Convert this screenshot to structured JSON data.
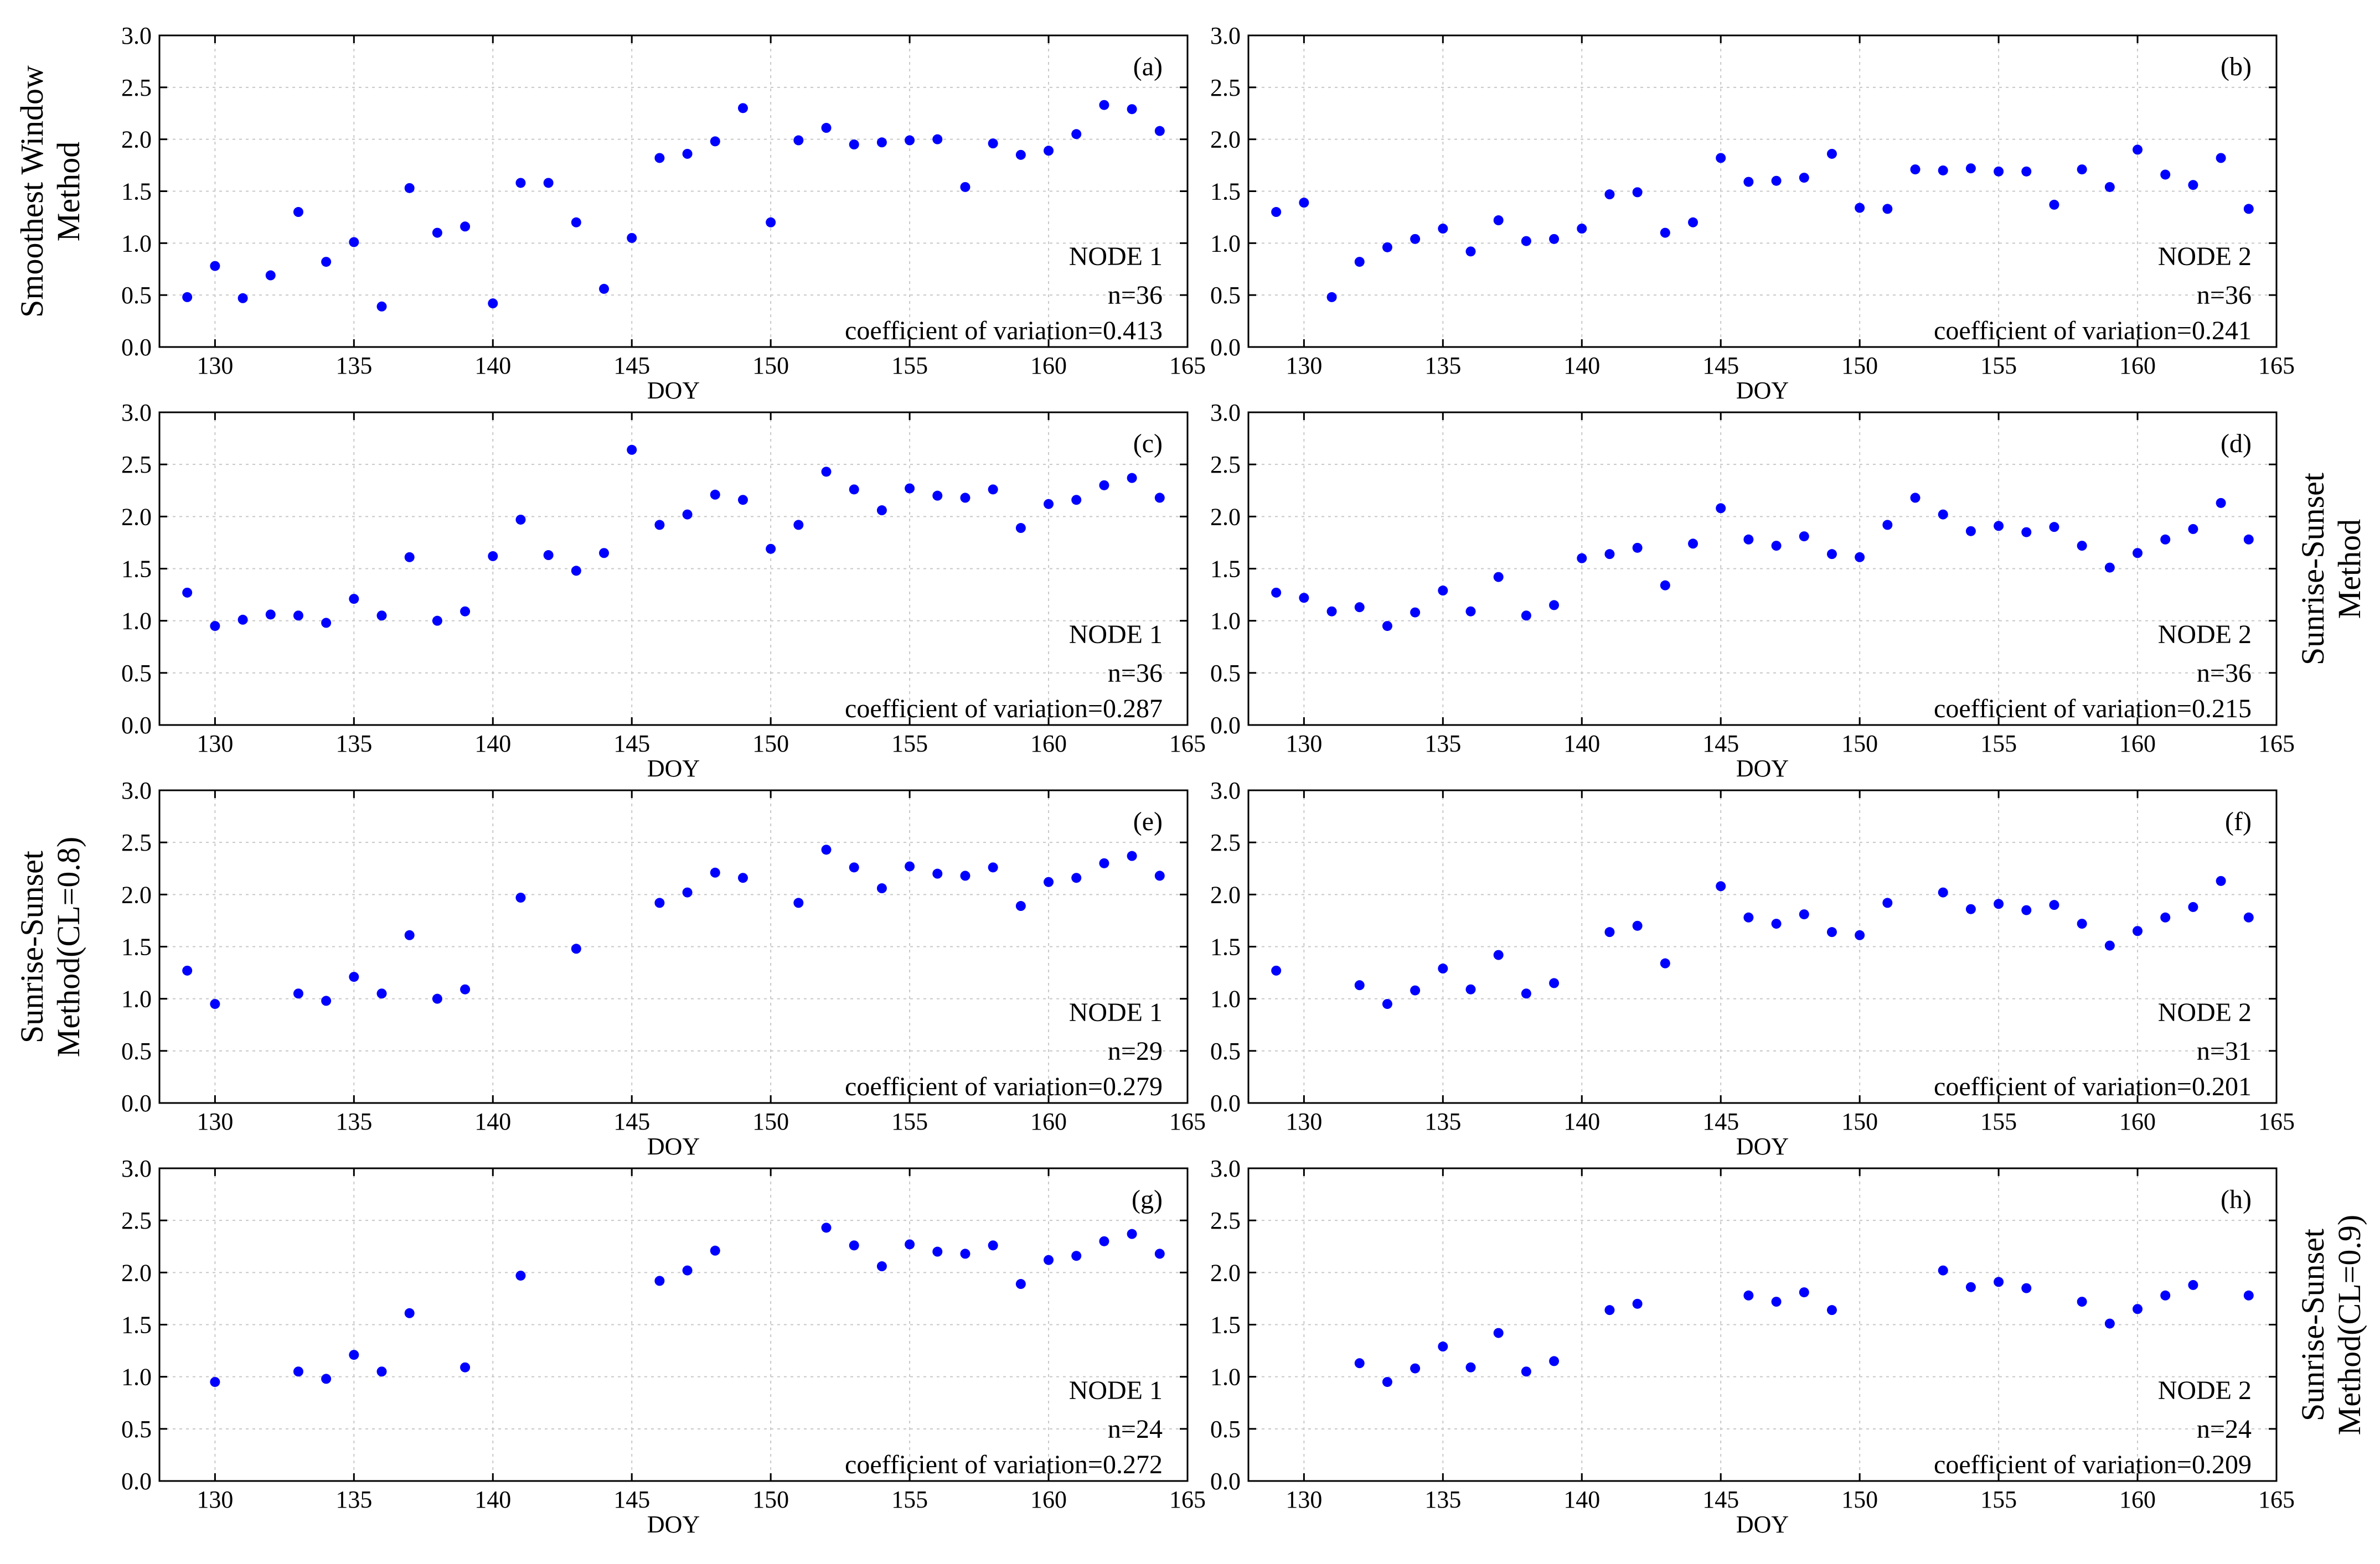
{
  "chart_data": [
    {
      "type": "scatter",
      "panel_label": "(a)",
      "node": "NODE 1",
      "n_text": "n=36",
      "cv_text": "coefficient of variation=0.413",
      "xlabel": "DOY",
      "xlim": [
        128,
        165
      ],
      "ylim": [
        0,
        3
      ],
      "xticks": [
        130,
        135,
        140,
        145,
        150,
        155,
        160,
        165
      ],
      "yticks": [
        0,
        0.5,
        1,
        1.5,
        2,
        2.5,
        3
      ],
      "xtick_labels": [
        "130",
        "135",
        "140",
        "145",
        "150",
        "155",
        "160",
        "165"
      ],
      "ytick_labels": [
        "0.0",
        "0.5",
        "1.0",
        "1.5",
        "2.0",
        "2.5",
        "3.0"
      ],
      "x": [
        129,
        130,
        131,
        132,
        133,
        134,
        135,
        136,
        137,
        138,
        139,
        140,
        141,
        142,
        143,
        144,
        145,
        146,
        147,
        148,
        149,
        150,
        151,
        152,
        153,
        154,
        155,
        156,
        157,
        158,
        159,
        160,
        161,
        162,
        163,
        164
      ],
      "y": [
        0.48,
        0.78,
        0.47,
        0.69,
        1.3,
        0.82,
        1.01,
        0.39,
        1.53,
        1.1,
        1.16,
        0.42,
        1.58,
        1.58,
        1.2,
        0.56,
        1.05,
        1.82,
        1.86,
        1.98,
        2.3,
        1.2,
        1.99,
        2.11,
        1.95,
        1.97,
        1.99,
        2.0,
        1.54,
        1.96,
        1.85,
        1.89,
        2.05,
        2.33,
        2.29,
        2.08
      ]
    },
    {
      "type": "scatter",
      "panel_label": "(b)",
      "node": "NODE 2",
      "n_text": "n=36",
      "cv_text": "coefficient of variation=0.241",
      "xlabel": "DOY",
      "xlim": [
        128,
        165
      ],
      "ylim": [
        0,
        3
      ],
      "xticks": [
        130,
        135,
        140,
        145,
        150,
        155,
        160,
        165
      ],
      "yticks": [
        0,
        0.5,
        1,
        1.5,
        2,
        2.5,
        3
      ],
      "xtick_labels": [
        "130",
        "135",
        "140",
        "145",
        "150",
        "155",
        "160",
        "165"
      ],
      "ytick_labels": [
        "0.0",
        "0.5",
        "1.0",
        "1.5",
        "2.0",
        "2.5",
        "3.0"
      ],
      "x": [
        129,
        130,
        131,
        132,
        133,
        134,
        135,
        136,
        137,
        138,
        139,
        140,
        141,
        142,
        143,
        144,
        145,
        146,
        147,
        148,
        149,
        150,
        151,
        152,
        153,
        154,
        155,
        156,
        157,
        158,
        159,
        160,
        161,
        162,
        163,
        164
      ],
      "y": [
        1.3,
        1.39,
        0.48,
        0.82,
        0.96,
        1.04,
        1.14,
        0.92,
        1.22,
        1.02,
        1.04,
        1.14,
        1.47,
        1.49,
        1.1,
        1.2,
        1.82,
        1.59,
        1.6,
        1.63,
        1.86,
        1.34,
        1.33,
        1.71,
        1.7,
        1.72,
        1.69,
        1.69,
        1.37,
        1.71,
        1.54,
        1.9,
        1.66,
        1.56,
        1.82,
        1.33
      ]
    },
    {
      "type": "scatter",
      "panel_label": "(c)",
      "node": "NODE 1",
      "n_text": "n=36",
      "cv_text": "coefficient of variation=0.287",
      "xlabel": "DOY",
      "xlim": [
        128,
        165
      ],
      "ylim": [
        0,
        3
      ],
      "xticks": [
        130,
        135,
        140,
        145,
        150,
        155,
        160,
        165
      ],
      "yticks": [
        0,
        0.5,
        1,
        1.5,
        2,
        2.5,
        3
      ],
      "xtick_labels": [
        "130",
        "135",
        "140",
        "145",
        "150",
        "155",
        "160",
        "165"
      ],
      "ytick_labels": [
        "0.0",
        "0.5",
        "1.0",
        "1.5",
        "2.0",
        "2.5",
        "3.0"
      ],
      "x": [
        129,
        130,
        131,
        132,
        133,
        134,
        135,
        136,
        137,
        138,
        139,
        140,
        141,
        142,
        143,
        144,
        145,
        146,
        147,
        148,
        149,
        150,
        151,
        152,
        153,
        154,
        155,
        156,
        157,
        158,
        159,
        160,
        161,
        162,
        163,
        164
      ],
      "y": [
        1.27,
        0.95,
        1.01,
        1.06,
        1.05,
        0.98,
        1.21,
        1.05,
        1.61,
        1.0,
        1.09,
        1.62,
        1.97,
        1.63,
        1.48,
        1.65,
        2.64,
        1.92,
        2.02,
        2.21,
        2.16,
        1.69,
        1.92,
        2.43,
        2.26,
        2.06,
        2.27,
        2.2,
        2.18,
        2.26,
        1.89,
        2.12,
        2.16,
        2.3,
        2.37,
        2.18
      ]
    },
    {
      "type": "scatter",
      "panel_label": "(d)",
      "node": "NODE 2",
      "n_text": "n=36",
      "cv_text": "coefficient of variation=0.215",
      "xlabel": "DOY",
      "xlim": [
        128,
        165
      ],
      "ylim": [
        0,
        3
      ],
      "xticks": [
        130,
        135,
        140,
        145,
        150,
        155,
        160,
        165
      ],
      "yticks": [
        0,
        0.5,
        1,
        1.5,
        2,
        2.5,
        3
      ],
      "xtick_labels": [
        "130",
        "135",
        "140",
        "145",
        "150",
        "155",
        "160",
        "165"
      ],
      "ytick_labels": [
        "0.0",
        "0.5",
        "1.0",
        "1.5",
        "2.0",
        "2.5",
        "3.0"
      ],
      "x": [
        129,
        130,
        131,
        132,
        133,
        134,
        135,
        136,
        137,
        138,
        139,
        140,
        141,
        142,
        143,
        144,
        145,
        146,
        147,
        148,
        149,
        150,
        151,
        152,
        153,
        154,
        155,
        156,
        157,
        158,
        159,
        160,
        161,
        162,
        163,
        164
      ],
      "y": [
        1.27,
        1.22,
        1.09,
        1.13,
        0.95,
        1.08,
        1.29,
        1.09,
        1.42,
        1.05,
        1.15,
        1.6,
        1.64,
        1.7,
        1.34,
        1.74,
        2.08,
        1.78,
        1.72,
        1.81,
        1.64,
        1.61,
        1.92,
        2.18,
        2.02,
        1.86,
        1.91,
        1.85,
        1.9,
        1.72,
        1.51,
        1.65,
        1.78,
        1.88,
        2.13,
        1.78
      ]
    },
    {
      "type": "scatter",
      "panel_label": "(e)",
      "node": "NODE 1",
      "n_text": "n=29",
      "cv_text": "coefficient of variation=0.279",
      "xlabel": "DOY",
      "xlim": [
        128,
        165
      ],
      "ylim": [
        0,
        3
      ],
      "xticks": [
        130,
        135,
        140,
        145,
        150,
        155,
        160,
        165
      ],
      "yticks": [
        0,
        0.5,
        1,
        1.5,
        2,
        2.5,
        3
      ],
      "xtick_labels": [
        "130",
        "135",
        "140",
        "145",
        "150",
        "155",
        "160",
        "165"
      ],
      "ytick_labels": [
        "0.0",
        "0.5",
        "1.0",
        "1.5",
        "2.0",
        "2.5",
        "3.0"
      ],
      "x": [
        129,
        130,
        133,
        134,
        135,
        136,
        137,
        138,
        139,
        141,
        143,
        146,
        147,
        148,
        149,
        151,
        152,
        153,
        154,
        155,
        156,
        157,
        158,
        159,
        160,
        161,
        162,
        163,
        164
      ],
      "y": [
        1.27,
        0.95,
        1.05,
        0.98,
        1.21,
        1.05,
        1.61,
        1.0,
        1.09,
        1.97,
        1.48,
        1.92,
        2.02,
        2.21,
        2.16,
        1.92,
        2.43,
        2.26,
        2.06,
        2.27,
        2.2,
        2.18,
        2.26,
        1.89,
        2.12,
        2.16,
        2.3,
        2.37,
        2.18
      ]
    },
    {
      "type": "scatter",
      "panel_label": "(f)",
      "node": "NODE 2",
      "n_text": "n=31",
      "cv_text": "coefficient of variation=0.201",
      "xlabel": "DOY",
      "xlim": [
        128,
        165
      ],
      "ylim": [
        0,
        3
      ],
      "xticks": [
        130,
        135,
        140,
        145,
        150,
        155,
        160,
        165
      ],
      "yticks": [
        0,
        0.5,
        1,
        1.5,
        2,
        2.5,
        3
      ],
      "xtick_labels": [
        "130",
        "135",
        "140",
        "145",
        "150",
        "155",
        "160",
        "165"
      ],
      "ytick_labels": [
        "0.0",
        "0.5",
        "1.0",
        "1.5",
        "2.0",
        "2.5",
        "3.0"
      ],
      "x": [
        129,
        132,
        133,
        134,
        135,
        136,
        137,
        138,
        139,
        141,
        142,
        143,
        145,
        146,
        147,
        148,
        149,
        150,
        151,
        153,
        154,
        155,
        156,
        157,
        158,
        159,
        160,
        161,
        162,
        163,
        164
      ],
      "y": [
        1.27,
        1.13,
        0.95,
        1.08,
        1.29,
        1.09,
        1.42,
        1.05,
        1.15,
        1.64,
        1.7,
        1.34,
        2.08,
        1.78,
        1.72,
        1.81,
        1.64,
        1.61,
        1.92,
        2.02,
        1.86,
        1.91,
        1.85,
        1.9,
        1.72,
        1.51,
        1.65,
        1.78,
        1.88,
        2.13,
        1.78
      ]
    },
    {
      "type": "scatter",
      "panel_label": "(g)",
      "node": "NODE 1",
      "n_text": "n=24",
      "cv_text": "coefficient of variation=0.272",
      "xlabel": "DOY",
      "xlim": [
        128,
        165
      ],
      "ylim": [
        0,
        3
      ],
      "xticks": [
        130,
        135,
        140,
        145,
        150,
        155,
        160,
        165
      ],
      "yticks": [
        0,
        0.5,
        1,
        1.5,
        2,
        2.5,
        3
      ],
      "xtick_labels": [
        "130",
        "135",
        "140",
        "145",
        "150",
        "155",
        "160",
        "165"
      ],
      "ytick_labels": [
        "0.0",
        "0.5",
        "1.0",
        "1.5",
        "2.0",
        "2.5",
        "3.0"
      ],
      "x": [
        130,
        133,
        134,
        135,
        136,
        137,
        139,
        141,
        146,
        147,
        148,
        152,
        153,
        154,
        155,
        156,
        157,
        158,
        159,
        160,
        161,
        162,
        163,
        164
      ],
      "y": [
        0.95,
        1.05,
        0.98,
        1.21,
        1.05,
        1.61,
        1.09,
        1.97,
        1.92,
        2.02,
        2.21,
        2.43,
        2.26,
        2.06,
        2.27,
        2.2,
        2.18,
        2.26,
        1.89,
        2.12,
        2.16,
        2.3,
        2.37,
        2.18
      ]
    },
    {
      "type": "scatter",
      "panel_label": "(h)",
      "node": "NODE 2",
      "n_text": "n=24",
      "cv_text": "coefficient of variation=0.209",
      "xlabel": "DOY",
      "xlim": [
        128,
        165
      ],
      "ylim": [
        0,
        3
      ],
      "xticks": [
        130,
        135,
        140,
        145,
        150,
        155,
        160,
        165
      ],
      "yticks": [
        0,
        0.5,
        1,
        1.5,
        2,
        2.5,
        3
      ],
      "xtick_labels": [
        "130",
        "135",
        "140",
        "145",
        "150",
        "155",
        "160",
        "165"
      ],
      "ytick_labels": [
        "0.0",
        "0.5",
        "1.0",
        "1.5",
        "2.0",
        "2.5",
        "3.0"
      ],
      "x": [
        132,
        133,
        134,
        135,
        136,
        137,
        138,
        139,
        141,
        142,
        146,
        147,
        148,
        149,
        153,
        154,
        155,
        156,
        158,
        159,
        160,
        161,
        162,
        164
      ],
      "y": [
        1.13,
        0.95,
        1.08,
        1.29,
        1.09,
        1.42,
        1.05,
        1.15,
        1.64,
        1.7,
        1.78,
        1.72,
        1.81,
        1.64,
        2.02,
        1.86,
        1.91,
        1.85,
        1.72,
        1.51,
        1.65,
        1.78,
        1.88,
        1.78
      ]
    }
  ],
  "row_labels": [
    {
      "lines": [
        "Smoothest Window",
        "Method"
      ]
    },
    {
      "lines": [
        "Sunrise-Sunset",
        "Method"
      ]
    },
    {
      "lines": [
        "Sunrise-Sunset",
        "Method(CL=0.8)"
      ]
    },
    {
      "lines": [
        "Sunrise-Sunset",
        "Method(CL=0.9)"
      ]
    }
  ],
  "colors": {
    "marker": "#0000ff",
    "axis": "#000000",
    "grid": "#c8c8c8"
  }
}
